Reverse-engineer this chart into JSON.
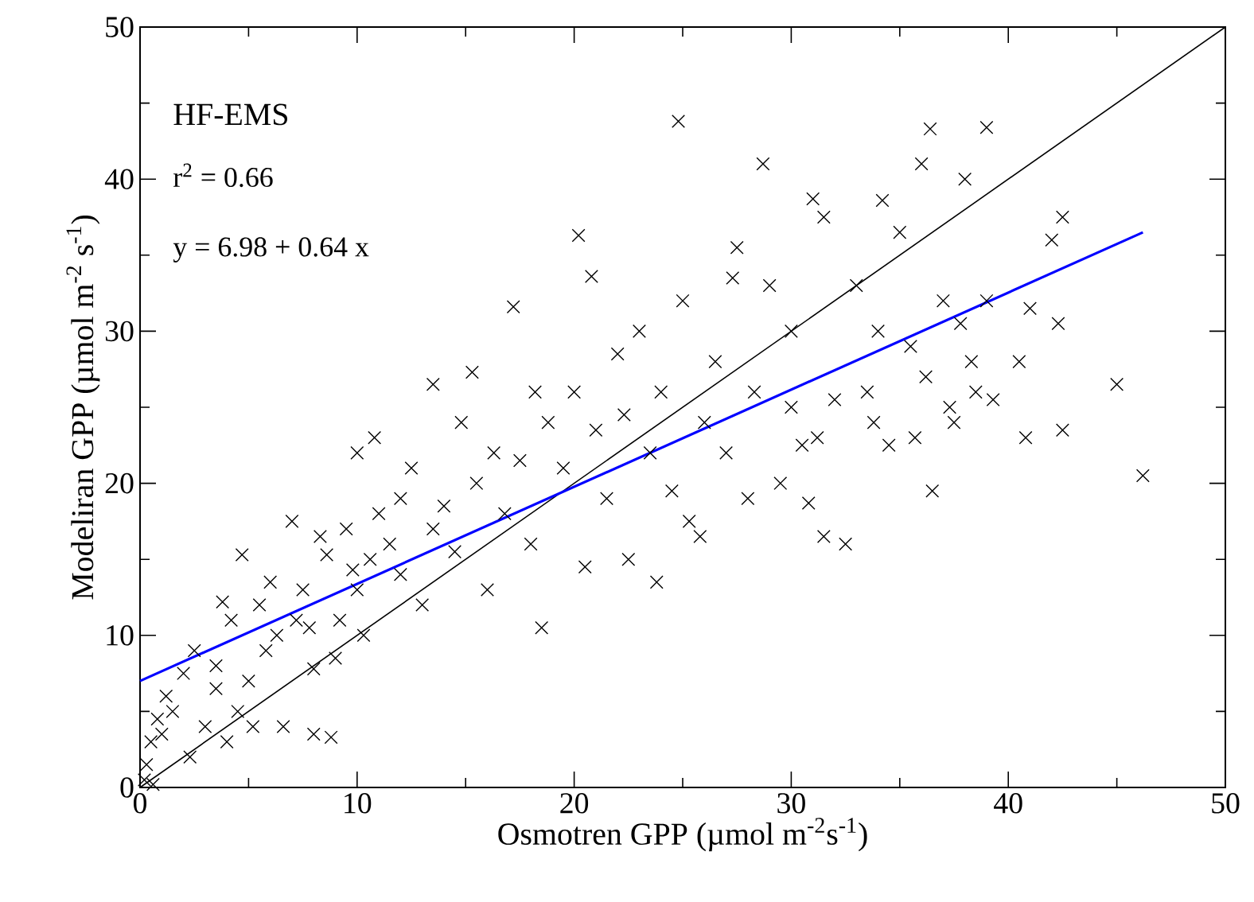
{
  "chart_data": {
    "type": "scatter",
    "xlabel": "Osmotren GPP (µmol m$^{-2}$s$^{-1}$)",
    "ylabel": "Modeliran GPP (µmol m$^{-2}$ s$^{-1}$)",
    "annotations": [
      "HF-EMS",
      "r$^{2}$ =  0.66",
      "y = 6.98 + 0.64  x"
    ],
    "xlim": [
      0,
      50
    ],
    "ylim": [
      0,
      50
    ],
    "xticks": [
      0,
      10,
      20,
      30,
      40,
      50
    ],
    "yticks": [
      0,
      10,
      20,
      30,
      40,
      50
    ],
    "grid": false,
    "series": [
      {
        "color": "#000000",
        "marker": "cross",
        "x": [
          0.2,
          0.3,
          0.5,
          0.8,
          1,
          1.2,
          0.6,
          1.5,
          2,
          2.5,
          2.3,
          3,
          3.5,
          3.5,
          3.8,
          4,
          4.2,
          4.5,
          4.7,
          5,
          5.2,
          5.5,
          5.8,
          6,
          6.3,
          6.6,
          7,
          7.2,
          7.5,
          7.8,
          8,
          8,
          8.3,
          8.6,
          8.8,
          9,
          9.2,
          9.5,
          9.8,
          10,
          10,
          10.3,
          10.6,
          10.8,
          11,
          11.5,
          12,
          12,
          12.5,
          13,
          13.5,
          13.5,
          14,
          14.5,
          14.8,
          15.3,
          15.5,
          16,
          16.3,
          16.8,
          17.2,
          17.5,
          18,
          18.2,
          18.5,
          18.8,
          19.5,
          20,
          20.2,
          20.5,
          20.8,
          21,
          21.5,
          22,
          22.3,
          22.5,
          23,
          23.5,
          23.8,
          24,
          24.5,
          24.8,
          25,
          25.3,
          25.8,
          26,
          26.5,
          27,
          27.3,
          27.5,
          28,
          28.3,
          28.7,
          29,
          29.5,
          30,
          30,
          30.5,
          30.8,
          31,
          31.2,
          31.5,
          31.5,
          32,
          32.5,
          33,
          33.5,
          33.8,
          34,
          34.2,
          34.5,
          35,
          35.5,
          35.7,
          36,
          36.2,
          36.4,
          36.5,
          37,
          37.3,
          37.5,
          37.8,
          38,
          38.3,
          38.5,
          39,
          39,
          39.3,
          40.5,
          40.8,
          41,
          42,
          42.3,
          42.5,
          42.5,
          45,
          46.2
        ],
        "values": [
          0.5,
          1.5,
          3,
          4.5,
          3.5,
          6,
          0.2,
          5,
          7.5,
          9,
          2,
          4,
          6.5,
          8,
          12.2,
          3,
          11,
          5,
          15.3,
          7,
          4,
          12,
          9,
          13.5,
          10,
          4,
          17.5,
          11,
          13,
          10.5,
          3.5,
          7.8,
          16.5,
          15.3,
          3.3,
          8.5,
          11,
          17,
          14.3,
          13,
          22,
          10,
          15,
          23,
          18,
          16,
          19,
          14,
          21,
          12,
          26.5,
          17,
          18.5,
          15.5,
          24,
          27.3,
          20,
          13,
          22,
          18,
          31.6,
          21.5,
          16,
          26,
          10.5,
          24,
          21,
          26,
          36.3,
          14.5,
          33.6,
          23.5,
          19,
          28.5,
          24.5,
          15,
          30,
          22,
          13.5,
          26,
          19.5,
          43.8,
          32,
          17.5,
          16.5,
          24,
          28,
          22,
          33.5,
          35.5,
          19,
          26,
          41,
          33,
          20,
          30,
          25,
          22.5,
          18.7,
          38.7,
          23,
          37.5,
          16.5,
          25.5,
          16,
          33,
          26,
          24,
          30,
          38.6,
          22.5,
          36.5,
          29,
          23,
          41,
          27,
          43.3,
          19.5,
          32,
          25,
          24,
          30.5,
          40,
          28,
          26,
          43.4,
          32,
          25.5,
          28,
          23,
          31.5,
          36,
          30.5,
          37.5,
          23.5,
          26.5,
          20.5
        ]
      },
      {
        "type": "line",
        "color": "#000000",
        "x": [
          0,
          50
        ],
        "values": [
          0,
          50
        ]
      },
      {
        "type": "line",
        "color": "#0000ff",
        "x": [
          0,
          46.2
        ],
        "values": [
          7,
          36.5
        ]
      }
    ]
  }
}
